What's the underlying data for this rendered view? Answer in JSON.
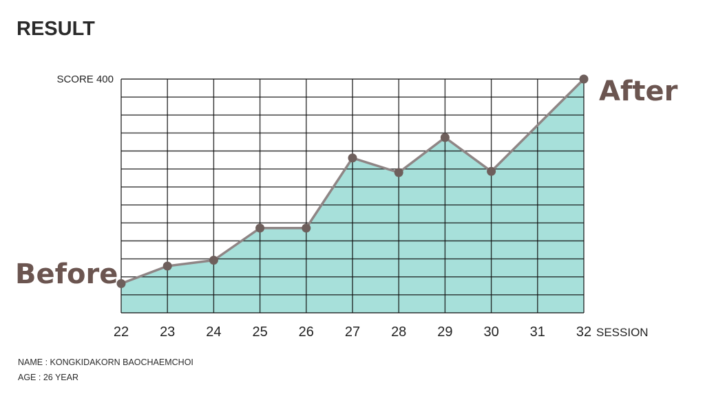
{
  "header": {
    "title": "RESULT"
  },
  "chart_data": {
    "type": "area",
    "x": [
      22,
      23,
      24,
      25,
      26,
      27,
      28,
      29,
      30,
      31,
      32
    ],
    "y": [
      50,
      80,
      90,
      145,
      145,
      265,
      240,
      300,
      242,
      null,
      400
    ],
    "xlim": [
      22,
      32
    ],
    "ylim": [
      0,
      400
    ],
    "ytick_label": "SCORE 400",
    "xlabel": "SESSION",
    "x_tick_labels": [
      "22",
      "23",
      "24",
      "25",
      "26",
      "27",
      "28",
      "29",
      "30",
      "31",
      "32"
    ],
    "annotations": {
      "start": "Before",
      "end": "After"
    },
    "grid": true,
    "colors": {
      "fill": "#a7e0da",
      "line": "#8f8585",
      "marker": "#6e5f5c",
      "grid": "#111111",
      "annotation": "#6b5550"
    }
  },
  "footer": {
    "name": "NAME : KONGKIDAKORN BAOCHAEMCHOI",
    "age": "AGE : 26 YEAR"
  }
}
